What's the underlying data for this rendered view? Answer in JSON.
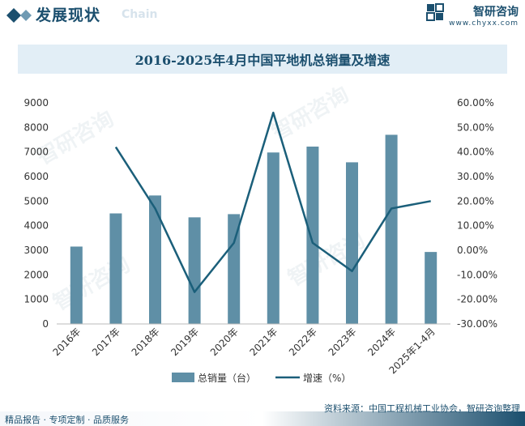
{
  "header": {
    "section_title": "发展现状",
    "section_sub": "Chain"
  },
  "brand": {
    "name": "智研咨询",
    "url": "www.chyxx.com",
    "icon": "zhiyan-logo-icon"
  },
  "watermark_text": "智研咨询",
  "footer": {
    "tagline": "精品报告 · 专项定制 · 品质服务",
    "source": "资料来源：中国工程机械工业协会，智研咨询整理"
  },
  "colors": {
    "bar": "#5f8fa6",
    "line": "#1b5f7a",
    "title_bg": "#e2eef6",
    "brand": "#1b4f6e"
  },
  "chart_data": {
    "type": "bar",
    "title": "2016-2025年4月中国平地机总销量及增速",
    "categories": [
      "2016年",
      "2017年",
      "2018年",
      "2019年",
      "2020年",
      "2021年",
      "2022年",
      "2023年",
      "2024年",
      "2025年1-4月"
    ],
    "series": [
      {
        "name": "总销量（台）",
        "type": "bar",
        "axis": "left",
        "values": [
          3150,
          4500,
          5230,
          4340,
          4470,
          6980,
          7220,
          6580,
          7700,
          2930
        ]
      },
      {
        "name": "增速（%）",
        "type": "line",
        "axis": "right",
        "values": [
          null,
          42.0,
          17.0,
          -17.0,
          3.0,
          56.0,
          3.0,
          -8.5,
          17.0,
          20.0
        ]
      }
    ],
    "y_left": {
      "min": 0,
      "max": 9000,
      "step": 1000,
      "ticks": [
        "0",
        "1000",
        "2000",
        "3000",
        "4000",
        "5000",
        "6000",
        "7000",
        "8000",
        "9000"
      ]
    },
    "y_right": {
      "min": -30,
      "max": 60,
      "step": 10,
      "ticks": [
        "-30.00%",
        "-20.00%",
        "-10.00%",
        "0.00%",
        "10.00%",
        "20.00%",
        "30.00%",
        "40.00%",
        "50.00%",
        "60.00%"
      ]
    },
    "grid": false,
    "legend": "bottom-center"
  }
}
